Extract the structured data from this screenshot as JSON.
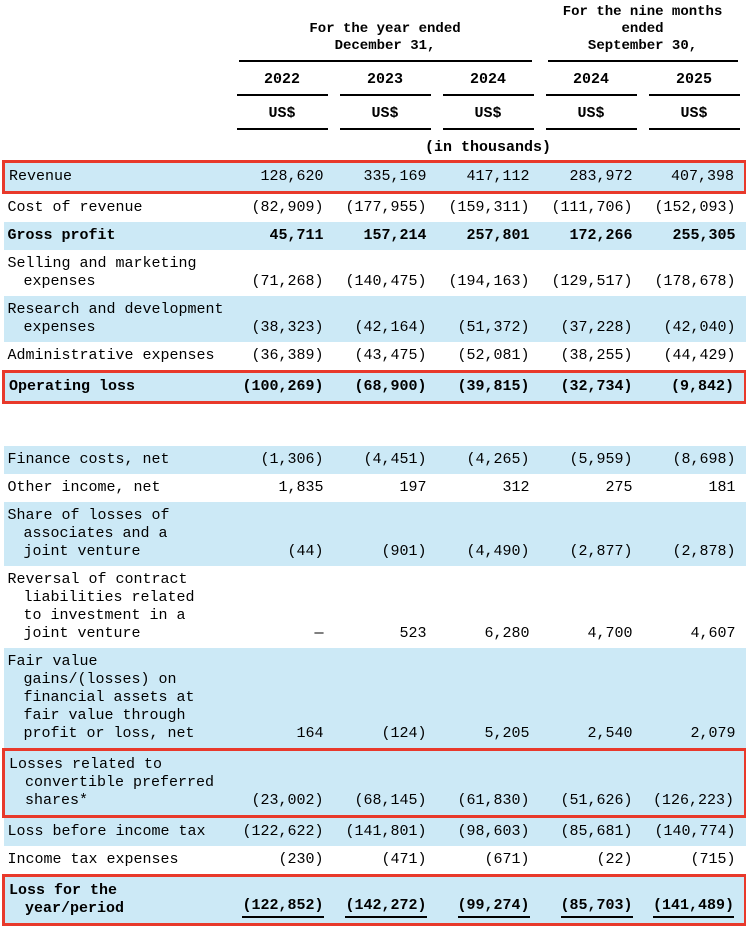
{
  "header": {
    "year_ended": {
      "line1": "For the year ended",
      "line2": "December 31,"
    },
    "nine_months": {
      "line1": "For the nine months",
      "line2": "ended",
      "line3": "September 30,"
    },
    "years": [
      "2022",
      "2023",
      "2024",
      "2024",
      "2025"
    ],
    "currency": "US$",
    "units": "(in thousands)"
  },
  "colors": {
    "row_shade": "#cce9f6",
    "highlight_box": "#e8392b",
    "rule": "#000000"
  },
  "table": {
    "rows": [
      {
        "label_lines": [
          "Revenue"
        ],
        "values": [
          "128,620",
          "335,169",
          "417,112",
          "283,972",
          "407,398"
        ],
        "shade": true,
        "bold": false,
        "boxed": true
      },
      {
        "label_lines": [
          "Cost of revenue"
        ],
        "values": [
          "(82,909)",
          "(177,955)",
          "(159,311)",
          "(111,706)",
          "(152,093)"
        ],
        "shade": false
      },
      {
        "label_lines": [
          "Gross profit"
        ],
        "values": [
          "45,711",
          "157,214",
          "257,801",
          "172,266",
          "255,305"
        ],
        "shade": true,
        "bold": true
      },
      {
        "label_lines": [
          "Selling and marketing",
          "expenses"
        ],
        "values": [
          "(71,268)",
          "(140,475)",
          "(194,163)",
          "(129,517)",
          "(178,678)"
        ],
        "shade": false
      },
      {
        "label_lines": [
          "Research and development",
          "expenses"
        ],
        "values": [
          "(38,323)",
          "(42,164)",
          "(51,372)",
          "(37,228)",
          "(42,040)"
        ],
        "shade": true
      },
      {
        "label_lines": [
          "Administrative expenses"
        ],
        "values": [
          "(36,389)",
          "(43,475)",
          "(52,081)",
          "(38,255)",
          "(44,429)"
        ],
        "shade": false
      },
      {
        "label_lines": [
          "Operating loss"
        ],
        "values": [
          "(100,269)",
          "(68,900)",
          "(39,815)",
          "(32,734)",
          "(9,842)"
        ],
        "shade": true,
        "bold": true,
        "boxed": true
      },
      {
        "spacer": true
      },
      {
        "label_lines": [
          "Finance costs, net"
        ],
        "values": [
          "(1,306)",
          "(4,451)",
          "(4,265)",
          "(5,959)",
          "(8,698)"
        ],
        "shade": true
      },
      {
        "label_lines": [
          "Other income, net"
        ],
        "values": [
          "1,835",
          "197",
          "312",
          "275",
          "181"
        ],
        "shade": false
      },
      {
        "label_lines": [
          "Share of losses of",
          "associates and a",
          "joint venture"
        ],
        "values": [
          "(44)",
          "(901)",
          "(4,490)",
          "(2,877)",
          "(2,878)"
        ],
        "shade": true
      },
      {
        "label_lines": [
          "Reversal of contract",
          "liabilities related",
          "to investment in a",
          "joint venture"
        ],
        "values": [
          "—",
          "523",
          "6,280",
          "4,700",
          "4,607"
        ],
        "shade": false
      },
      {
        "label_lines": [
          "Fair value",
          "gains/(losses) on",
          "financial assets at",
          "fair value through",
          "profit or loss, net"
        ],
        "values": [
          "164",
          "(124)",
          "5,205",
          "2,540",
          "2,079"
        ],
        "shade": true
      },
      {
        "label_lines": [
          "Losses related to",
          "convertible preferred",
          "shares*"
        ],
        "values": [
          "(23,002)",
          "(68,145)",
          "(61,830)",
          "(51,626)",
          "(126,223)"
        ],
        "shade": true,
        "boxed": true
      },
      {
        "label_lines": [
          "Loss before income tax"
        ],
        "values": [
          "(122,622)",
          "(141,801)",
          "(98,603)",
          "(85,681)",
          "(140,774)"
        ],
        "shade": true
      },
      {
        "label_lines": [
          "Income tax expenses"
        ],
        "values": [
          "(230)",
          "(471)",
          "(671)",
          "(22)",
          "(715)"
        ],
        "shade": false
      },
      {
        "label_lines": [
          "Loss for the",
          "year/period"
        ],
        "values": [
          "(122,852)",
          "(142,272)",
          "(99,274)",
          "(85,703)",
          "(141,489)"
        ],
        "shade": true,
        "bold": true,
        "boxed": true,
        "underline_values": true
      }
    ]
  }
}
